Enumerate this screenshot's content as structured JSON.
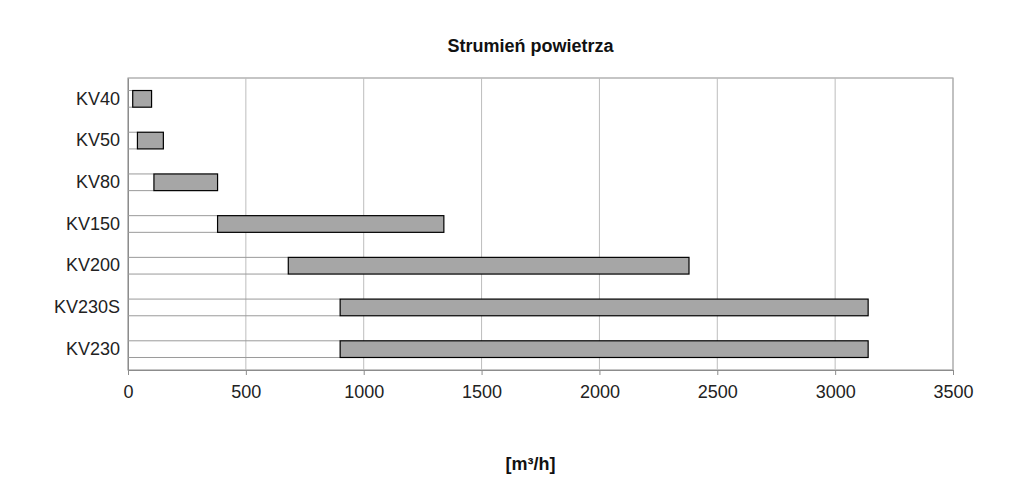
{
  "chart_data": {
    "type": "bar",
    "orientation": "horizontal",
    "title": "Strumień powietrza",
    "x_label": "[m³/h]",
    "categories": [
      "KV40",
      "KV50",
      "KV80",
      "KV150",
      "KV200",
      "KV230S",
      "KV230"
    ],
    "values": [
      [
        20,
        100
      ],
      [
        40,
        150
      ],
      [
        110,
        380
      ],
      [
        380,
        1340
      ],
      [
        680,
        2380
      ],
      [
        900,
        3140
      ],
      [
        900,
        3140
      ]
    ],
    "color": "#a6a6a6",
    "xlim": [
      0,
      3500
    ],
    "xticks": [
      0,
      500,
      1000,
      1500,
      2000,
      2500,
      3000,
      3500
    ],
    "grid": true
  }
}
